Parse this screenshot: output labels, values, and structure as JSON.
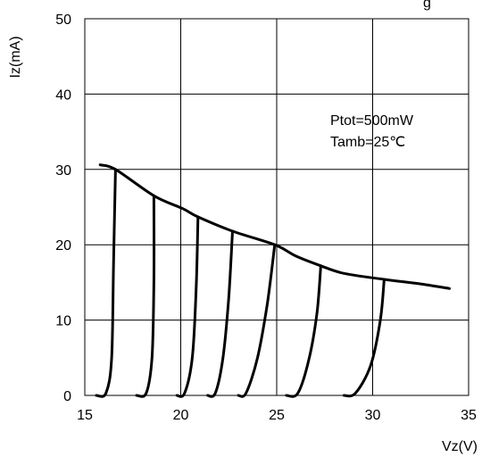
{
  "chart_data": {
    "type": "line",
    "title": "",
    "xlabel": "Vz(V)",
    "ylabel": "Iz(mA)",
    "xlim": [
      15,
      35
    ],
    "ylim": [
      0,
      50
    ],
    "x_ticks": [
      15,
      20,
      25,
      30,
      35
    ],
    "y_ticks": [
      0,
      10,
      20,
      30,
      40,
      50
    ],
    "grid": true,
    "annotations": [
      "Ptot=500mW",
      "Tamb=25℃"
    ],
    "partial_top_text": "g",
    "series": [
      {
        "x": [
          15.6,
          16.1,
          16.4,
          16.5,
          16.6
        ],
        "y": [
          0,
          0.3,
          5,
          18,
          30
        ]
      },
      {
        "x": [
          17.7,
          18.2,
          18.5,
          18.6,
          18.6
        ],
        "y": [
          0,
          0.3,
          5,
          15,
          26.5
        ]
      },
      {
        "x": [
          19.8,
          20.2,
          20.6,
          20.8,
          20.9
        ],
        "y": [
          0,
          0.3,
          5,
          14,
          23.7
        ]
      },
      {
        "x": [
          21.4,
          21.8,
          22.2,
          22.5,
          22.7
        ],
        "y": [
          0,
          0.3,
          5,
          13,
          21.8
        ]
      },
      {
        "x": [
          23.0,
          23.4,
          24.0,
          24.5,
          24.9
        ],
        "y": [
          0,
          0.3,
          5,
          12,
          20
        ]
      },
      {
        "x": [
          25.5,
          26.1,
          26.7,
          27.1,
          27.3
        ],
        "y": [
          0,
          0.3,
          5,
          11,
          17.2
        ]
      },
      {
        "x": [
          28.5,
          29.1,
          29.9,
          30.4,
          30.6
        ],
        "y": [
          0,
          0.3,
          4,
          10,
          15.4
        ]
      },
      {
        "x": [
          15.8,
          16.6,
          18.6,
          20.1,
          20.9,
          22.7,
          24.9,
          26.0,
          27.3,
          28.5,
          30.6,
          32.5,
          34.0
        ],
        "y": [
          30.6,
          30.0,
          26.5,
          24.8,
          23.7,
          21.8,
          20.0,
          18.5,
          17.2,
          16.2,
          15.4,
          14.8,
          14.2
        ]
      }
    ]
  }
}
